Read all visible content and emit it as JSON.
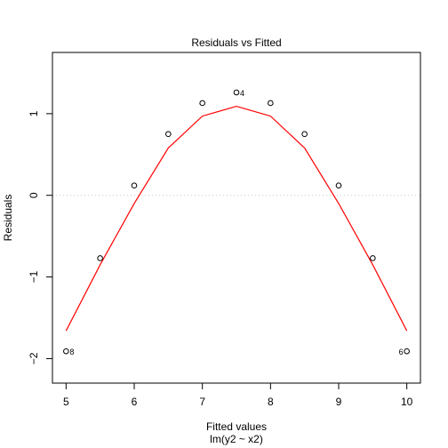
{
  "chart_data": {
    "type": "scatter",
    "title": "Residuals vs Fitted",
    "xlabel": "Fitted values",
    "ylabel": "Residuals",
    "subtitle": "lm(y2 ~ x2)",
    "xlim": [
      4.8,
      10.2
    ],
    "ylim": [
      -2.3,
      1.75
    ],
    "xticks": [
      5,
      6,
      7,
      8,
      9,
      10
    ],
    "yticks": [
      -2,
      -1,
      0,
      1
    ],
    "points": {
      "x": [
        5,
        5.5,
        6,
        6.5,
        7,
        7.5,
        8,
        8.5,
        9,
        9.5,
        10
      ],
      "y": [
        -1.91,
        -0.77,
        0.12,
        0.75,
        1.13,
        1.26,
        1.13,
        0.75,
        0.12,
        -0.77,
        -1.91
      ]
    },
    "smooth": {
      "name": "smoother",
      "x": [
        5,
        5.5,
        6,
        6.5,
        7,
        7.5,
        8,
        8.5,
        9,
        9.5,
        10
      ],
      "y": [
        -1.66,
        -0.85,
        -0.1,
        0.58,
        0.97,
        1.09,
        0.97,
        0.58,
        -0.1,
        -0.85,
        -1.66
      ]
    },
    "point_labels": [
      {
        "text": "8",
        "x": 5,
        "y": -1.91,
        "side": "right"
      },
      {
        "text": "4",
        "x": 7.5,
        "y": 1.26,
        "side": "right"
      },
      {
        "text": "6",
        "x": 10,
        "y": -1.91,
        "side": "left"
      }
    ],
    "reference_line": {
      "y": 0
    },
    "colors": {
      "smooth": "#ff0000",
      "reference": "#c8c8c8",
      "points": "#000000"
    }
  }
}
